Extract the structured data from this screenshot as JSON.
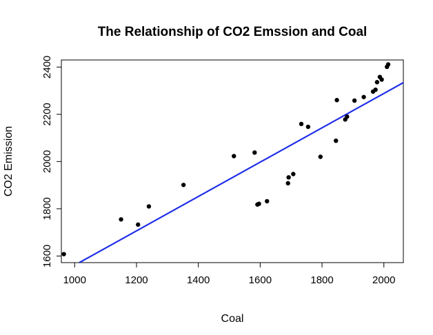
{
  "chart_data": {
    "type": "scatter",
    "title": "The Relationship of CO2 Emssion and Coal",
    "xlabel": "Coal",
    "ylabel": "CO2 Emission",
    "xlim": [
      957,
      2063
    ],
    "ylim": [
      1572,
      2430
    ],
    "x_ticks": [
      1000,
      1200,
      1400,
      1600,
      1800,
      2000
    ],
    "y_ticks": [
      1600,
      1800,
      2000,
      2200,
      2400
    ],
    "grid": false,
    "legend": "none",
    "point_color": "#000000",
    "line_color": "#1f2ee8",
    "points": [
      {
        "x": 965,
        "y": 1608
      },
      {
        "x": 1150,
        "y": 1755
      },
      {
        "x": 1205,
        "y": 1733
      },
      {
        "x": 1240,
        "y": 1810
      },
      {
        "x": 1352,
        "y": 1901
      },
      {
        "x": 1515,
        "y": 2023
      },
      {
        "x": 1582,
        "y": 2038
      },
      {
        "x": 1591,
        "y": 1818
      },
      {
        "x": 1596,
        "y": 1821
      },
      {
        "x": 1622,
        "y": 1832
      },
      {
        "x": 1690,
        "y": 1908
      },
      {
        "x": 1692,
        "y": 1933
      },
      {
        "x": 1707,
        "y": 1947
      },
      {
        "x": 1733,
        "y": 2159
      },
      {
        "x": 1755,
        "y": 2147
      },
      {
        "x": 1795,
        "y": 2020
      },
      {
        "x": 1845,
        "y": 2088
      },
      {
        "x": 1848,
        "y": 2260
      },
      {
        "x": 1875,
        "y": 2178
      },
      {
        "x": 1881,
        "y": 2190
      },
      {
        "x": 1905,
        "y": 2258
      },
      {
        "x": 1935,
        "y": 2273
      },
      {
        "x": 1965,
        "y": 2296
      },
      {
        "x": 1973,
        "y": 2304
      },
      {
        "x": 1978,
        "y": 2336
      },
      {
        "x": 1987,
        "y": 2358
      },
      {
        "x": 1993,
        "y": 2347
      },
      {
        "x": 2010,
        "y": 2401
      },
      {
        "x": 2014,
        "y": 2411
      }
    ],
    "fit_line": {
      "x": [
        1015,
        2063
      ],
      "y": [
        1572,
        2334
      ]
    }
  }
}
